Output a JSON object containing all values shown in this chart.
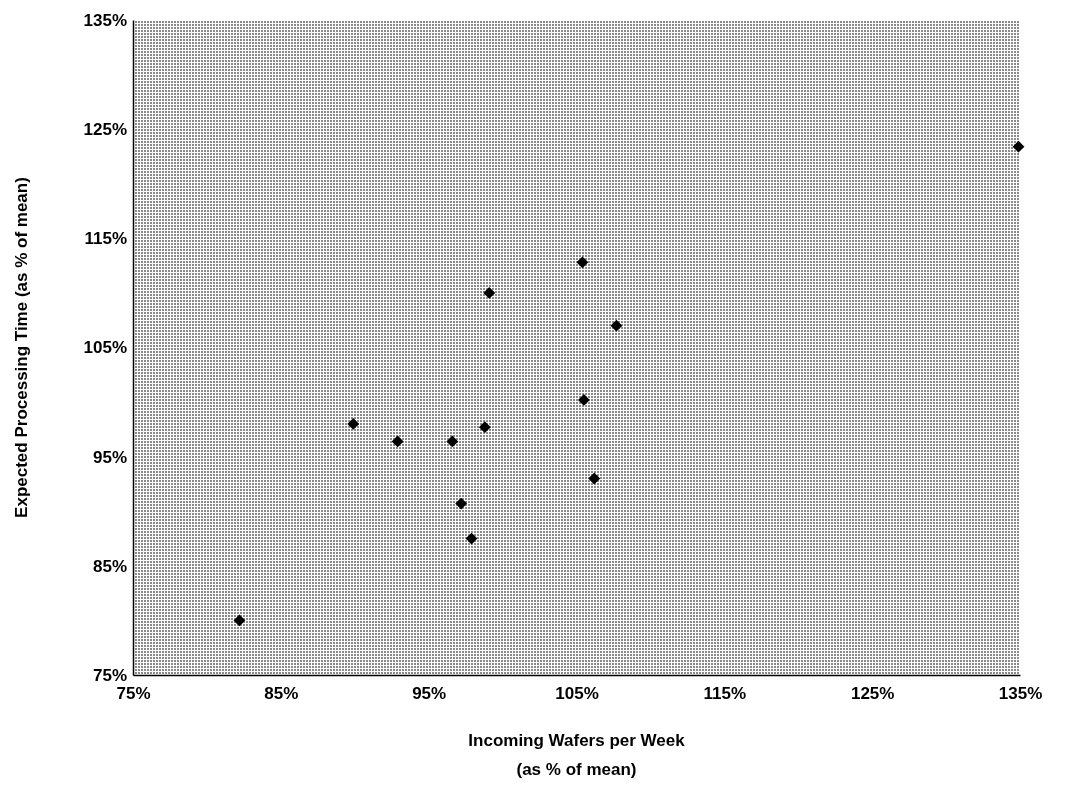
{
  "chart_data": {
    "type": "scatter",
    "xlabel": "Incoming Wafers per Week\n(as % of mean)",
    "ylabel": "Expected Processing Time (as % of mean)",
    "x": [
      82.2,
      89.9,
      92.9,
      96.6,
      99.1,
      98.8,
      97.2,
      97.9,
      105.4,
      105.5,
      106.2,
      107.7,
      134.9
    ],
    "series": [
      {
        "color": "#000000",
        "values": [
          80.0,
          98.0,
          96.4,
          96.4,
          110.0,
          97.7,
          90.7,
          87.5,
          112.8,
          100.2,
          93.0,
          107.0,
          123.4
        ]
      }
    ],
    "xlim": [
      75,
      135
    ],
    "xticks": [
      {
        "value": 75,
        "label": "75%"
      },
      {
        "value": 85,
        "label": "85%"
      },
      {
        "value": 95,
        "label": "95%"
      },
      {
        "value": 105,
        "label": "105%"
      },
      {
        "value": 115,
        "label": "115%"
      },
      {
        "value": 125,
        "label": "125%"
      },
      {
        "value": 135,
        "label": "135%"
      }
    ],
    "ylim": [
      75,
      135
    ],
    "yticks": [
      {
        "value": 75,
        "label": "75%"
      },
      {
        "value": 85,
        "label": "85%"
      },
      {
        "value": 95,
        "label": "95%"
      },
      {
        "value": 105,
        "label": "105%"
      },
      {
        "value": 115,
        "label": "115%"
      },
      {
        "value": 125,
        "label": "125%"
      },
      {
        "value": 135,
        "label": "135%"
      }
    ],
    "marker": "diamond",
    "grid": false
  }
}
